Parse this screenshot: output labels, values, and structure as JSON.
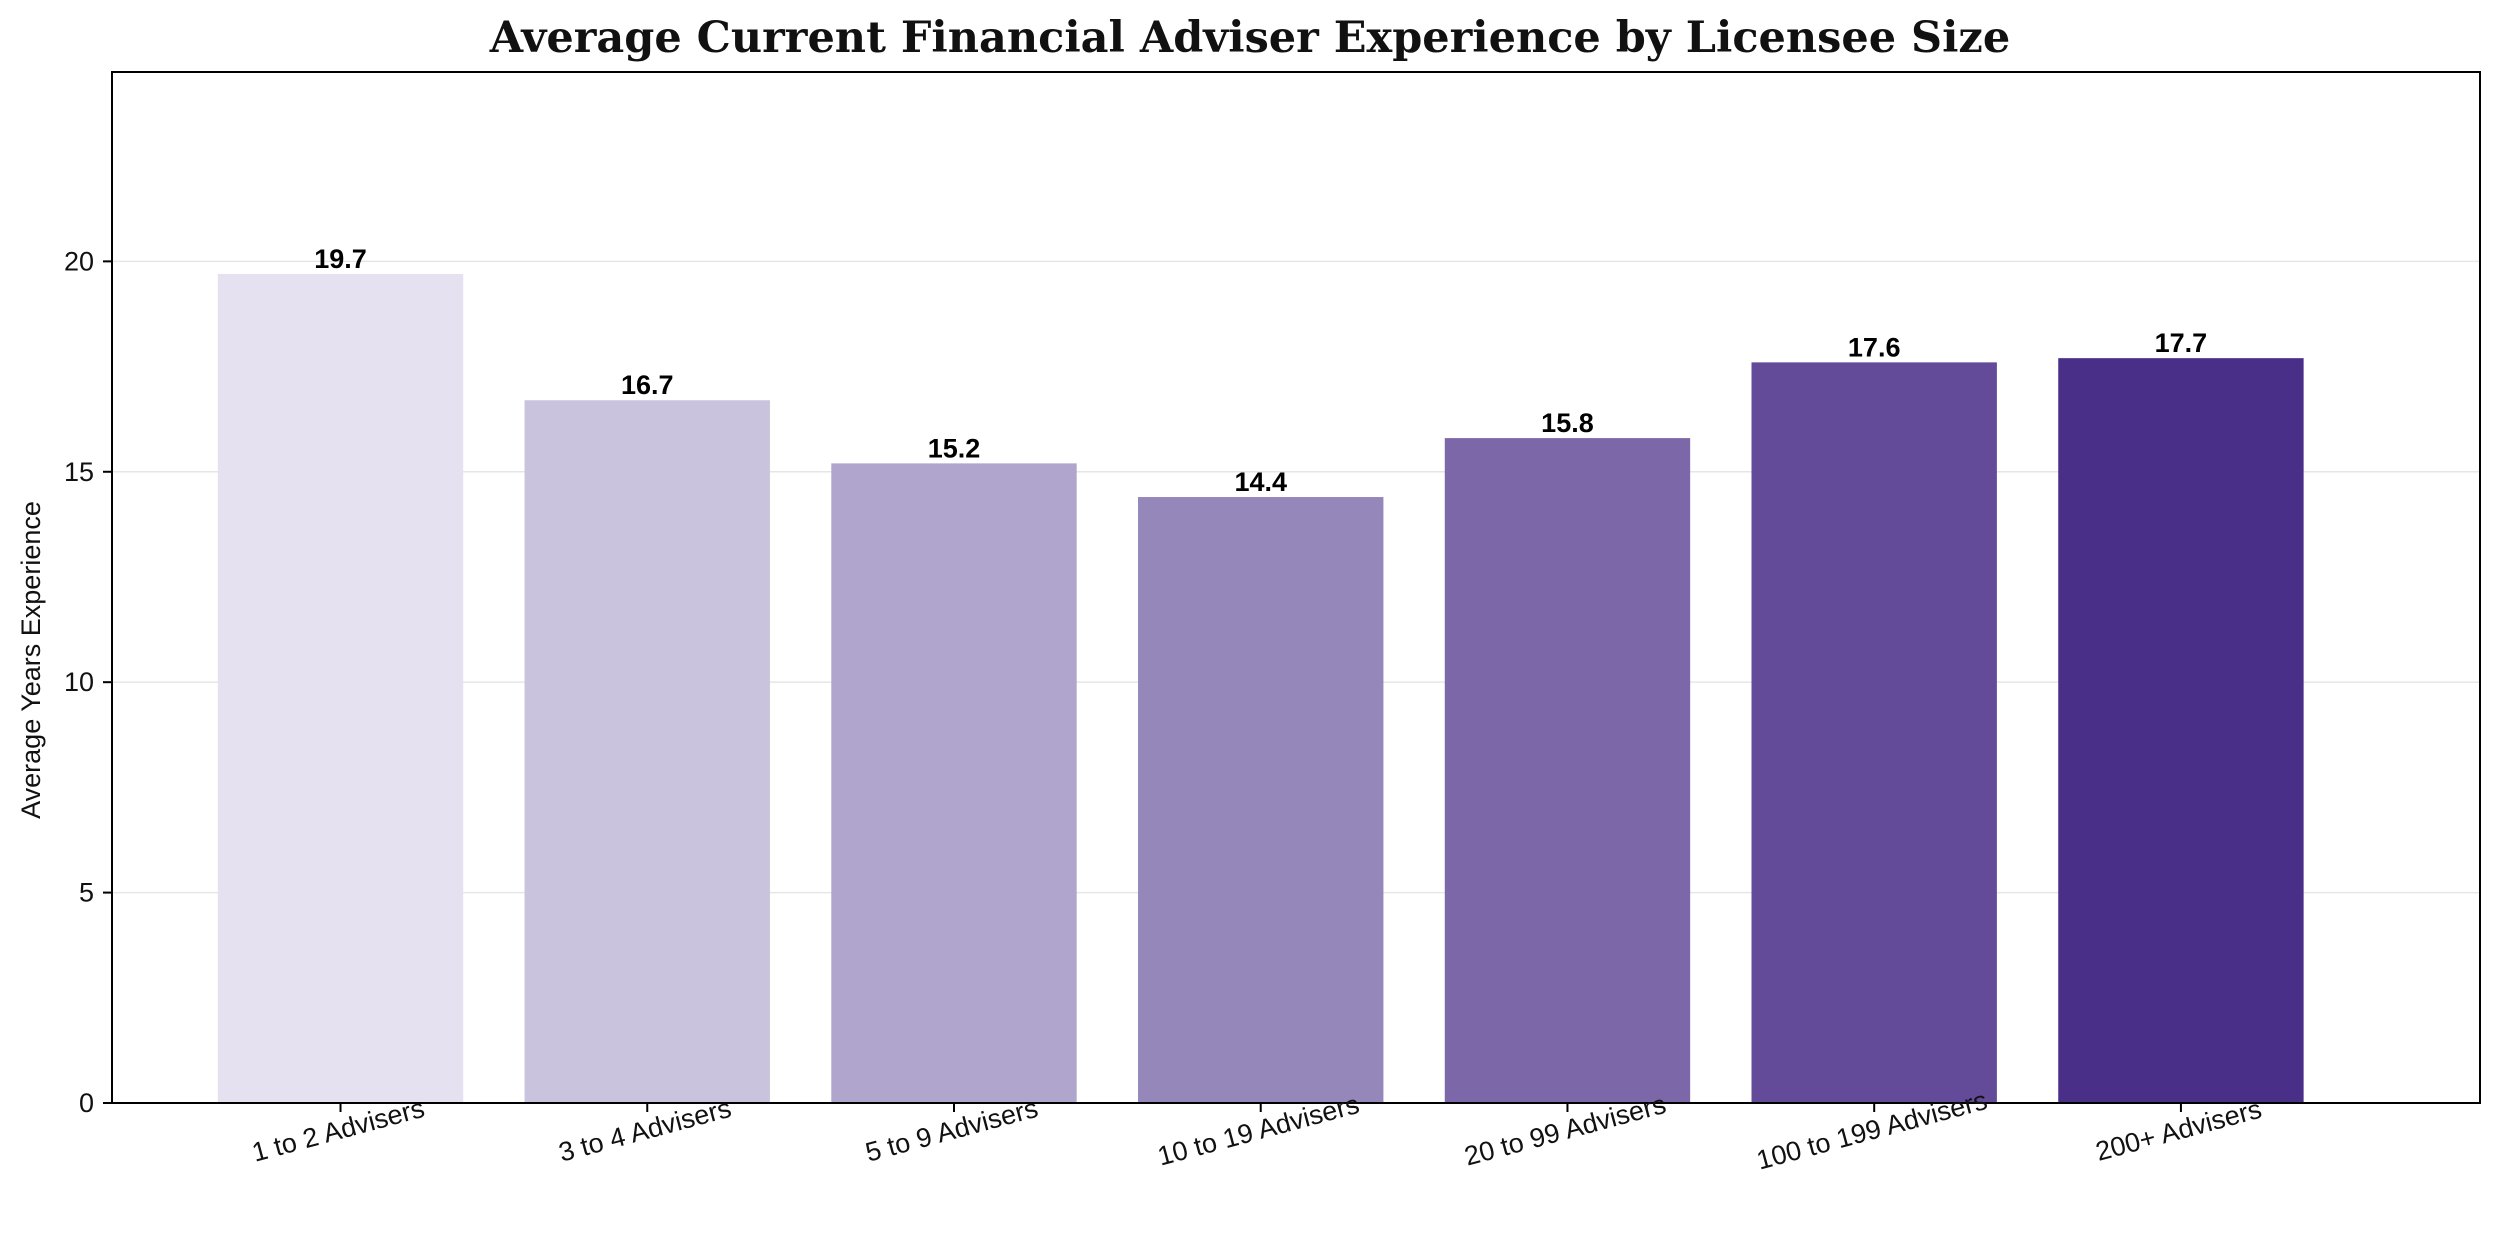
{
  "chart_data": {
    "type": "bar",
    "title": "Average Current Financial Adviser Experience by Licensee Size",
    "xlabel": "",
    "ylabel": "Average Years Experience",
    "categories": [
      "1 to 2 Advisers",
      "3 to 4 Advisers",
      "5 to 9 Advisers",
      "10 to 19 Advisers",
      "20 to 99 Advisers",
      "100 to 199 Advisers",
      "200+ Advisers"
    ],
    "values": [
      19.7,
      16.7,
      15.2,
      14.4,
      15.8,
      17.6,
      17.7
    ],
    "data_labels": [
      "19.7",
      "16.7",
      "15.2",
      "14.4",
      "15.8",
      "17.6",
      "17.7"
    ],
    "ylim": [
      0,
      24.5
    ],
    "yticks": [
      0,
      5,
      10,
      15,
      20
    ],
    "grid": true,
    "legend": "none",
    "colors": [
      "#e5e1f0",
      "#c9c3de",
      "#b0a5cd",
      "#9687bb",
      "#7c67a9",
      "#634b99",
      "#4a2f89"
    ]
  }
}
